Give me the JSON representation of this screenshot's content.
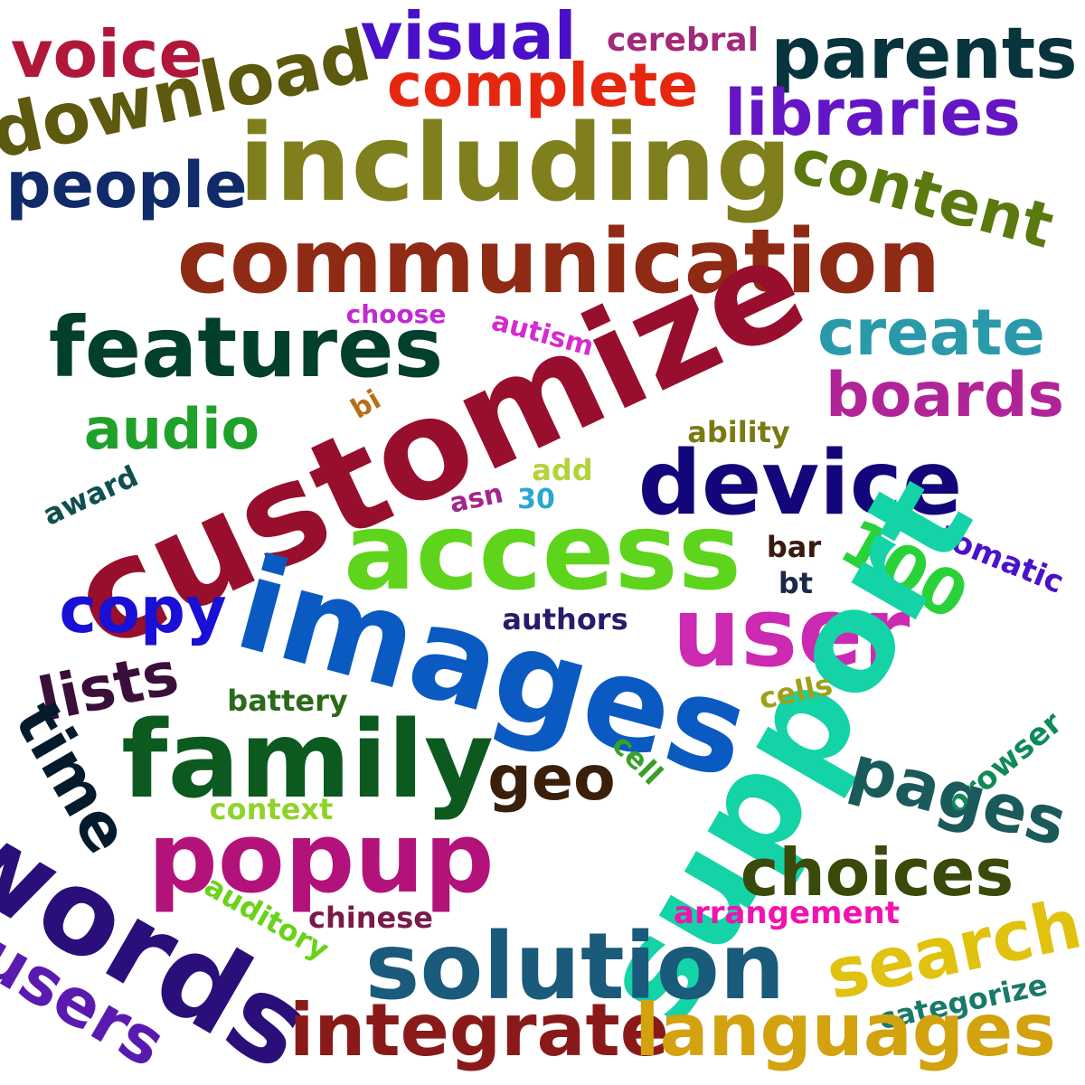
{
  "words": [
    {
      "text": "voice",
      "color": "#b0173a"
    },
    {
      "text": "visual",
      "color": "#4a10c9"
    },
    {
      "text": "cerebral",
      "color": "#a22a7a"
    },
    {
      "text": "parents",
      "color": "#07343d"
    },
    {
      "text": "download",
      "color": "#5d5a0f"
    },
    {
      "text": "complete",
      "color": "#e5270f"
    },
    {
      "text": "libraries",
      "color": "#6516c4"
    },
    {
      "text": "including",
      "color": "#7f7f1d"
    },
    {
      "text": "people",
      "color": "#102a6a"
    },
    {
      "text": "content",
      "color": "#5a7a10"
    },
    {
      "text": "communication",
      "color": "#8f2a14"
    },
    {
      "text": "features",
      "color": "#033f2d"
    },
    {
      "text": "choose",
      "color": "#c12ad2"
    },
    {
      "text": "autism",
      "color": "#d52bd0"
    },
    {
      "text": "create",
      "color": "#2a9aaa"
    },
    {
      "text": "customize",
      "color": "#970f2c"
    },
    {
      "text": "boards",
      "color": "#b12497"
    },
    {
      "text": "audio",
      "color": "#1fa12a"
    },
    {
      "text": "bi",
      "color": "#b76f1a"
    },
    {
      "text": "ability",
      "color": "#7a7a12"
    },
    {
      "text": "device",
      "color": "#13057a"
    },
    {
      "text": "add",
      "color": "#b5d23a"
    },
    {
      "text": "award",
      "color": "#0f4f4f"
    },
    {
      "text": "asn",
      "color": "#a0268a"
    },
    {
      "text": "30",
      "color": "#2aa7d2"
    },
    {
      "text": "access",
      "color": "#5ed51c"
    },
    {
      "text": "100",
      "color": "#2ad23a"
    },
    {
      "text": "automatic",
      "color": "#4a12c9"
    },
    {
      "text": "bar",
      "color": "#3a1a0f"
    },
    {
      "text": "copy",
      "color": "#1a0fd5"
    },
    {
      "text": "bt",
      "color": "#1a2a4a"
    },
    {
      "text": "images",
      "color": "#0a5ac2"
    },
    {
      "text": "user",
      "color": "#cc2ab3"
    },
    {
      "text": "authors",
      "color": "#2a1a6a"
    },
    {
      "text": "lists",
      "color": "#3a0f3a"
    },
    {
      "text": "support",
      "color": "#14d3a7"
    },
    {
      "text": "battery",
      "color": "#2a6a1a"
    },
    {
      "text": "cells",
      "color": "#a0a01a"
    },
    {
      "text": "time",
      "color": "#051a2a"
    },
    {
      "text": "family",
      "color": "#0c5a1f"
    },
    {
      "text": "cell",
      "color": "#3aa02a"
    },
    {
      "text": "browser",
      "color": "#0f8a5a"
    },
    {
      "text": "geo",
      "color": "#3a1f0a"
    },
    {
      "text": "pages",
      "color": "#1a5a5a"
    },
    {
      "text": "context",
      "color": "#8fd32a"
    },
    {
      "text": "popup",
      "color": "#b3127a"
    },
    {
      "text": "choices",
      "color": "#3a4a0a"
    },
    {
      "text": "words",
      "color": "#2a0f7a"
    },
    {
      "text": "auditory",
      "color": "#6ad21a"
    },
    {
      "text": "chinese",
      "color": "#7a1a4a"
    },
    {
      "text": "arrangement",
      "color": "#f212b0"
    },
    {
      "text": "search",
      "color": "#e0c20f"
    },
    {
      "text": "solution",
      "color": "#1a5a7a"
    },
    {
      "text": "users",
      "color": "#5a1ab0"
    },
    {
      "text": "categorize",
      "color": "#1a7a6a"
    },
    {
      "text": "integrate",
      "color": "#8a1a1a"
    },
    {
      "text": "languages",
      "color": "#d2a20f"
    }
  ]
}
